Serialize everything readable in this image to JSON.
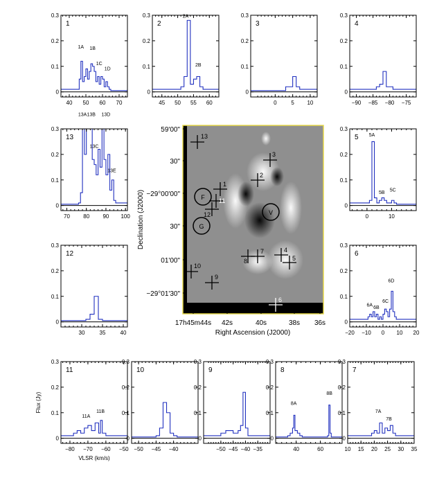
{
  "image_panel": {
    "xlabel": "Right Ascension (J2000)",
    "ylabel": "Declination (J2000)",
    "ra_ticks": [
      "17h45m44s",
      "42s",
      "40s",
      "38s",
      "36s"
    ],
    "dec_ticks": [
      "59'00\"",
      "30\"",
      "−29°00'00\"",
      "30\"",
      "01'00\"",
      "−29°01'30\""
    ],
    "crosses": [
      "1",
      "2",
      "3",
      "4",
      "5",
      "6",
      "7",
      "8",
      "9",
      "10",
      "11",
      "12",
      "13"
    ],
    "circles": [
      "F",
      "G",
      "V"
    ]
  },
  "chart_data": [
    {
      "type": "line",
      "id": "1",
      "xlim": [
        35,
        75
      ],
      "ylim": [
        -0.02,
        0.3
      ],
      "xticks": [
        40,
        50,
        60,
        70
      ],
      "yticks": [
        0,
        0.1,
        0.2,
        0.3
      ],
      "ylabel": "",
      "x": [
        35,
        45,
        46,
        47,
        48,
        49,
        50,
        51,
        52,
        53,
        54,
        55,
        56,
        57,
        58,
        59,
        60,
        61,
        62,
        63,
        64,
        65,
        75
      ],
      "values": [
        0.01,
        0.01,
        0.05,
        0.12,
        0.04,
        0.06,
        0.09,
        0.05,
        0.08,
        0.11,
        0.1,
        0.08,
        0.04,
        0.06,
        0.03,
        0.06,
        0.05,
        0.02,
        0.04,
        0.02,
        0.01,
        0.005,
        0.01
      ],
      "labels": [
        {
          "text": "1A",
          "x": 47,
          "y": 0.17
        },
        {
          "text": "1B",
          "x": 54,
          "y": 0.165
        },
        {
          "text": "1C",
          "x": 58,
          "y": 0.105
        },
        {
          "text": "1D",
          "x": 63,
          "y": 0.085
        }
      ]
    },
    {
      "type": "line",
      "id": "2",
      "xlim": [
        42,
        63
      ],
      "ylim": [
        -0.02,
        0.3
      ],
      "xticks": [
        45,
        50,
        55,
        60
      ],
      "yticks": [
        0,
        0.1,
        0.2,
        0.3
      ],
      "ylabel": "",
      "x": [
        42,
        51,
        52,
        53,
        54,
        55,
        56,
        57,
        58,
        63
      ],
      "values": [
        0.01,
        0.02,
        0.06,
        0.28,
        0.03,
        0.05,
        0.06,
        0.02,
        0.01,
        0.01
      ],
      "labels": [
        {
          "text": "2A",
          "x": 52.5,
          "y": 0.29
        },
        {
          "text": "2B",
          "x": 56.5,
          "y": 0.1
        }
      ]
    },
    {
      "type": "line",
      "id": "3",
      "xlim": [
        -7,
        12
      ],
      "ylim": [
        -0.02,
        0.3
      ],
      "xticks": [
        0,
        5,
        10
      ],
      "yticks": [
        0,
        0.1,
        0.2,
        0.3
      ],
      "ylabel": "",
      "x": [
        -7,
        2,
        3,
        4,
        5,
        6,
        7,
        12
      ],
      "values": [
        0.005,
        0.005,
        0.02,
        0.02,
        0.06,
        0.02,
        0.01,
        0.005
      ],
      "labels": []
    },
    {
      "type": "line",
      "id": "4",
      "xlim": [
        -92,
        -72
      ],
      "ylim": [
        -0.02,
        0.3
      ],
      "xticks": [
        -90,
        -85,
        -80,
        -75
      ],
      "yticks": [
        0,
        0.1,
        0.2,
        0.3
      ],
      "ylabel": "",
      "x": [
        -92,
        -84,
        -83,
        -82,
        -81,
        -80,
        -79,
        -72
      ],
      "values": [
        0.01,
        0.02,
        0.03,
        0.08,
        0.02,
        0.02,
        0.01,
        0.01
      ],
      "labels": []
    },
    {
      "type": "line",
      "id": "13",
      "xlim": [
        67,
        101
      ],
      "ylim": [
        -0.02,
        0.3
      ],
      "xticks": [
        70,
        80,
        90,
        100
      ],
      "yticks": [
        0,
        0.1,
        0.2,
        0.3
      ],
      "ylabel": "",
      "x": [
        67,
        76,
        77,
        78,
        79,
        80,
        81,
        82,
        83,
        84,
        85,
        86,
        87,
        88,
        89,
        90,
        91,
        92,
        93,
        94,
        95,
        101
      ],
      "values": [
        0.005,
        0.01,
        0.05,
        0.33,
        0.2,
        0.33,
        0.3,
        0.33,
        0.18,
        0.16,
        0.12,
        0.22,
        0.15,
        0.3,
        0.18,
        0.12,
        0.2,
        0.06,
        0.1,
        0.02,
        0.01,
        0.005
      ],
      "labels": [
        {
          "text": "13A",
          "x": 78,
          "y": 0.36
        },
        {
          "text": "13B",
          "x": 82.5,
          "y": 0.37
        },
        {
          "text": "13C",
          "x": 84,
          "y": 0.225
        },
        {
          "text": "13D",
          "x": 90,
          "y": 0.35
        },
        {
          "text": "13E",
          "x": 93,
          "y": 0.13
        }
      ]
    },
    {
      "type": "line",
      "id": "5",
      "xlim": [
        -7,
        20
      ],
      "ylim": [
        -0.02,
        0.3
      ],
      "xticks": [
        0,
        10
      ],
      "yticks": [
        0,
        0.1,
        0.2,
        0.3
      ],
      "ylabel": "",
      "x": [
        -7,
        1,
        2,
        3,
        4,
        5,
        6,
        7,
        8,
        9,
        10,
        11,
        12,
        20
      ],
      "values": [
        0.01,
        0.02,
        0.25,
        0.03,
        0.01,
        0.02,
        0.03,
        0.02,
        0.01,
        0.01,
        0.02,
        0.01,
        0.005,
        0.005
      ],
      "labels": [
        {
          "text": "5A",
          "x": 2,
          "y": 0.27
        },
        {
          "text": "5B",
          "x": 6,
          "y": 0.045
        },
        {
          "text": "5C",
          "x": 10.5,
          "y": 0.055
        }
      ]
    },
    {
      "type": "line",
      "id": "12",
      "xlim": [
        25,
        41
      ],
      "ylim": [
        -0.02,
        0.3
      ],
      "xticks": [
        30,
        35,
        40
      ],
      "yticks": [
        0,
        0.1,
        0.2,
        0.3
      ],
      "ylabel": "",
      "x": [
        25,
        31,
        32,
        33,
        34,
        35,
        41
      ],
      "values": [
        0.005,
        0.01,
        0.03,
        0.1,
        0.01,
        0.005,
        0.005
      ],
      "labels": []
    },
    {
      "type": "line",
      "id": "6",
      "xlim": [
        -20,
        20
      ],
      "ylim": [
        -0.02,
        0.3
      ],
      "xticks": [
        -20,
        -10,
        0,
        10,
        20
      ],
      "yticks": [
        0,
        0.1,
        0.2,
        0.3
      ],
      "ylabel": "",
      "x": [
        -20,
        -10,
        -9,
        -8,
        -7,
        -6,
        -5,
        -4,
        -3,
        -2,
        -1,
        0,
        1,
        2,
        3,
        4,
        5,
        6,
        7,
        8,
        20
      ],
      "values": [
        0.01,
        0.01,
        0.02,
        0.03,
        0.02,
        0.04,
        0.02,
        0.03,
        0.01,
        0.02,
        0.01,
        0.03,
        0.05,
        0.04,
        0.02,
        0.05,
        0.12,
        0.04,
        0.02,
        0.01,
        0.01
      ],
      "labels": [
        {
          "text": "6A",
          "x": -8,
          "y": 0.06
        },
        {
          "text": "6B",
          "x": -4,
          "y": 0.05
        },
        {
          "text": "6C",
          "x": 1.5,
          "y": 0.075
        },
        {
          "text": "6D",
          "x": 5,
          "y": 0.155
        }
      ]
    },
    {
      "type": "line",
      "id": "11",
      "xlim": [
        -85,
        -48
      ],
      "ylim": [
        -0.02,
        0.3
      ],
      "xticks": [
        -80,
        -70,
        -60,
        -50
      ],
      "yticks": [
        0,
        0.1,
        0.2,
        0.3
      ],
      "ylabel": "Flux (Jy)",
      "xlabel": "VLSR (km/s)",
      "x": [
        -85,
        -78,
        -76,
        -74,
        -72,
        -70,
        -68,
        -66,
        -64,
        -63,
        -62,
        -60,
        -58,
        -48
      ],
      "values": [
        0.01,
        0.02,
        0.03,
        0.02,
        0.04,
        0.05,
        0.03,
        0.06,
        0.02,
        0.07,
        0.02,
        0.01,
        0.01,
        0.005
      ],
      "labels": [
        {
          "text": "11A",
          "x": -71,
          "y": 0.08
        },
        {
          "text": "11B",
          "x": -63,
          "y": 0.1
        }
      ]
    },
    {
      "type": "line",
      "id": "10",
      "xlim": [
        -52,
        -33
      ],
      "ylim": [
        -0.02,
        0.3
      ],
      "xticks": [
        -50,
        -45,
        -40
      ],
      "yticks": [
        0,
        0.1,
        0.2,
        0.3
      ],
      "ylabel": "",
      "x": [
        -52,
        -45,
        -44,
        -43,
        -42,
        -41,
        -40,
        -39,
        -33
      ],
      "values": [
        0.005,
        0.01,
        0.04,
        0.14,
        0.1,
        0.02,
        0.01,
        0.005,
        0.005
      ],
      "labels": []
    },
    {
      "type": "line",
      "id": "9",
      "xlim": [
        -57,
        -30
      ],
      "ylim": [
        -0.02,
        0.3
      ],
      "xticks": [
        -50,
        -45,
        -40,
        -35
      ],
      "yticks": [
        0,
        0.1,
        0.2,
        0.3
      ],
      "ylabel": "",
      "x": [
        -57,
        -50,
        -48,
        -45,
        -43,
        -42,
        -41,
        -40,
        -39,
        -38,
        -30
      ],
      "values": [
        0.01,
        0.02,
        0.03,
        0.02,
        0.03,
        0.05,
        0.18,
        0.04,
        0.01,
        0.01,
        0.01
      ],
      "labels": []
    },
    {
      "type": "line",
      "id": "8",
      "xlim": [
        23,
        78
      ],
      "ylim": [
        -0.02,
        0.3
      ],
      "xticks": [
        40,
        60
      ],
      "yticks": [
        0,
        0.1,
        0.2,
        0.3
      ],
      "ylabel": "",
      "x": [
        23,
        33,
        35,
        37,
        38,
        39,
        41,
        43,
        45,
        66,
        67,
        68,
        69,
        78
      ],
      "values": [
        0.005,
        0.01,
        0.02,
        0.04,
        0.09,
        0.03,
        0.02,
        0.01,
        0.005,
        0.01,
        0.13,
        0.02,
        0.005,
        0.005
      ],
      "labels": [
        {
          "text": "8A",
          "x": 38,
          "y": 0.13
        },
        {
          "text": "8B",
          "x": 67.5,
          "y": 0.17
        }
      ]
    },
    {
      "type": "line",
      "id": "7",
      "xlim": [
        10,
        35
      ],
      "ylim": [
        -0.02,
        0.3
      ],
      "xticks": [
        10,
        15,
        20,
        25,
        30,
        35
      ],
      "yticks": [
        0,
        0.1,
        0.2,
        0.3
      ],
      "ylabel": "",
      "x": [
        10,
        17,
        19,
        20,
        21,
        22,
        23,
        24,
        25,
        26,
        27,
        28,
        35
      ],
      "values": [
        0.01,
        0.01,
        0.02,
        0.03,
        0.02,
        0.06,
        0.02,
        0.04,
        0.03,
        0.05,
        0.02,
        0.01,
        0.01
      ],
      "labels": [
        {
          "text": "7A",
          "x": 21.5,
          "y": 0.1
        },
        {
          "text": "7B",
          "x": 25.5,
          "y": 0.07
        }
      ]
    }
  ]
}
